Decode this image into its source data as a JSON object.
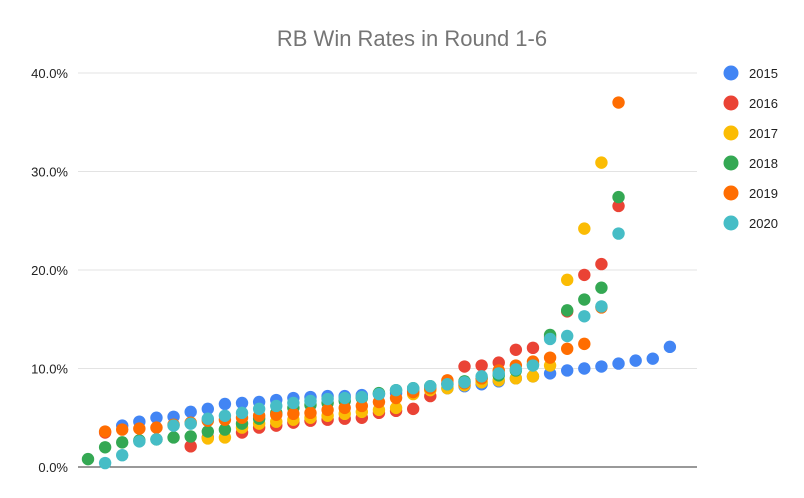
{
  "chart_data": {
    "type": "scatter",
    "title": "RB Win Rates in Round 1-6",
    "xlabel": "",
    "ylabel": "",
    "ylim": [
      0,
      40
    ],
    "y_ticks": [
      "0.0%",
      "10.0%",
      "20.0%",
      "30.0%",
      "40.0%"
    ],
    "grid": true,
    "legend_position": "right",
    "series": [
      {
        "name": "2015",
        "color": "#4285F4",
        "points": [
          [
            2,
            4.2
          ],
          [
            3,
            4.6
          ],
          [
            4,
            5.0
          ],
          [
            5,
            5.1
          ],
          [
            6,
            5.6
          ],
          [
            7,
            5.9
          ],
          [
            8,
            6.4
          ],
          [
            9,
            6.5
          ],
          [
            10,
            6.6
          ],
          [
            11,
            6.8
          ],
          [
            12,
            7.0
          ],
          [
            13,
            7.1
          ],
          [
            14,
            7.2
          ],
          [
            15,
            7.2
          ],
          [
            16,
            7.3
          ],
          [
            17,
            7.4
          ],
          [
            18,
            7.5
          ],
          [
            19,
            7.7
          ],
          [
            20,
            7.9
          ],
          [
            21,
            8.0
          ],
          [
            22,
            8.2
          ],
          [
            23,
            8.4
          ],
          [
            24,
            8.7
          ],
          [
            25,
            9.0
          ],
          [
            26,
            9.2
          ],
          [
            27,
            9.5
          ],
          [
            28,
            9.8
          ],
          [
            29,
            10.0
          ],
          [
            30,
            10.2
          ],
          [
            31,
            10.5
          ],
          [
            32,
            10.8
          ],
          [
            33,
            11.0
          ],
          [
            34,
            12.2
          ]
        ]
      },
      {
        "name": "2016",
        "color": "#EA4335",
        "points": [
          [
            1,
            3.5
          ],
          [
            6,
            2.1
          ],
          [
            7,
            3.0
          ],
          [
            9,
            3.5
          ],
          [
            10,
            4.0
          ],
          [
            11,
            4.2
          ],
          [
            12,
            4.5
          ],
          [
            13,
            4.7
          ],
          [
            14,
            4.8
          ],
          [
            15,
            4.9
          ],
          [
            16,
            5.0
          ],
          [
            17,
            5.5
          ],
          [
            18,
            5.7
          ],
          [
            19,
            5.9
          ],
          [
            20,
            7.2
          ],
          [
            21,
            8.5
          ],
          [
            22,
            10.2
          ],
          [
            23,
            10.3
          ],
          [
            24,
            10.6
          ],
          [
            25,
            11.9
          ],
          [
            26,
            12.1
          ],
          [
            27,
            13.2
          ],
          [
            28,
            15.8
          ],
          [
            29,
            19.5
          ],
          [
            30,
            20.6
          ],
          [
            31,
            26.5
          ]
        ]
      },
      {
        "name": "2017",
        "color": "#FBBC04",
        "points": [
          [
            7,
            2.9
          ],
          [
            8,
            3.0
          ],
          [
            9,
            4.0
          ],
          [
            10,
            4.4
          ],
          [
            11,
            4.6
          ],
          [
            12,
            4.8
          ],
          [
            13,
            5.0
          ],
          [
            14,
            5.2
          ],
          [
            15,
            5.4
          ],
          [
            16,
            5.6
          ],
          [
            17,
            5.8
          ],
          [
            18,
            6.0
          ],
          [
            19,
            7.4
          ],
          [
            20,
            7.8
          ],
          [
            21,
            8.0
          ],
          [
            22,
            8.3
          ],
          [
            23,
            8.6
          ],
          [
            24,
            8.8
          ],
          [
            25,
            9.0
          ],
          [
            26,
            9.2
          ],
          [
            27,
            10.3
          ],
          [
            28,
            19.0
          ],
          [
            29,
            24.2
          ],
          [
            30,
            30.9
          ]
        ]
      },
      {
        "name": "2018",
        "color": "#34A853",
        "points": [
          [
            0,
            0.8
          ],
          [
            1,
            2.0
          ],
          [
            2,
            2.5
          ],
          [
            3,
            2.7
          ],
          [
            4,
            2.8
          ],
          [
            5,
            3.0
          ],
          [
            6,
            3.1
          ],
          [
            7,
            3.6
          ],
          [
            8,
            3.8
          ],
          [
            9,
            4.4
          ],
          [
            10,
            4.9
          ],
          [
            11,
            5.5
          ],
          [
            12,
            6.0
          ],
          [
            13,
            6.3
          ],
          [
            14,
            6.5
          ],
          [
            15,
            6.7
          ],
          [
            16,
            7.0
          ],
          [
            17,
            7.5
          ],
          [
            18,
            7.8
          ],
          [
            19,
            8.0
          ],
          [
            20,
            8.2
          ],
          [
            21,
            8.4
          ],
          [
            22,
            8.7
          ],
          [
            23,
            9.0
          ],
          [
            24,
            9.3
          ],
          [
            25,
            9.8
          ],
          [
            26,
            10.4
          ],
          [
            27,
            13.4
          ],
          [
            28,
            15.9
          ],
          [
            29,
            17.0
          ],
          [
            30,
            18.2
          ],
          [
            31,
            27.4
          ]
        ]
      },
      {
        "name": "2019",
        "color": "#FF6D01",
        "points": [
          [
            1,
            3.6
          ],
          [
            2,
            3.8
          ],
          [
            3,
            3.9
          ],
          [
            4,
            4.0
          ],
          [
            5,
            4.3
          ],
          [
            6,
            4.5
          ],
          [
            7,
            4.7
          ],
          [
            8,
            4.8
          ],
          [
            9,
            5.0
          ],
          [
            10,
            5.2
          ],
          [
            11,
            5.3
          ],
          [
            12,
            5.4
          ],
          [
            13,
            5.5
          ],
          [
            14,
            5.8
          ],
          [
            15,
            6.0
          ],
          [
            16,
            6.2
          ],
          [
            17,
            6.6
          ],
          [
            18,
            7.0
          ],
          [
            19,
            7.6
          ],
          [
            20,
            8.0
          ],
          [
            21,
            8.8
          ],
          [
            22,
            8.5
          ],
          [
            23,
            9.0
          ],
          [
            24,
            9.8
          ],
          [
            25,
            10.3
          ],
          [
            26,
            10.7
          ],
          [
            27,
            11.1
          ],
          [
            28,
            12.0
          ],
          [
            29,
            12.5
          ],
          [
            30,
            16.2
          ],
          [
            31,
            37.0
          ]
        ]
      },
      {
        "name": "2020",
        "color": "#46BDC6",
        "points": [
          [
            1,
            0.4
          ],
          [
            2,
            1.2
          ],
          [
            3,
            2.6
          ],
          [
            4,
            2.8
          ],
          [
            5,
            4.2
          ],
          [
            6,
            4.4
          ],
          [
            7,
            4.9
          ],
          [
            8,
            5.2
          ],
          [
            9,
            5.5
          ],
          [
            10,
            5.9
          ],
          [
            11,
            6.2
          ],
          [
            12,
            6.5
          ],
          [
            13,
            6.7
          ],
          [
            14,
            6.9
          ],
          [
            15,
            7.0
          ],
          [
            16,
            7.1
          ],
          [
            17,
            7.4
          ],
          [
            18,
            7.8
          ],
          [
            19,
            8.0
          ],
          [
            20,
            8.2
          ],
          [
            21,
            8.4
          ],
          [
            22,
            8.6
          ],
          [
            23,
            9.2
          ],
          [
            24,
            9.5
          ],
          [
            25,
            9.9
          ],
          [
            26,
            10.3
          ],
          [
            27,
            13.0
          ],
          [
            28,
            13.3
          ],
          [
            29,
            15.3
          ],
          [
            30,
            16.3
          ],
          [
            31,
            23.7
          ]
        ]
      }
    ]
  }
}
